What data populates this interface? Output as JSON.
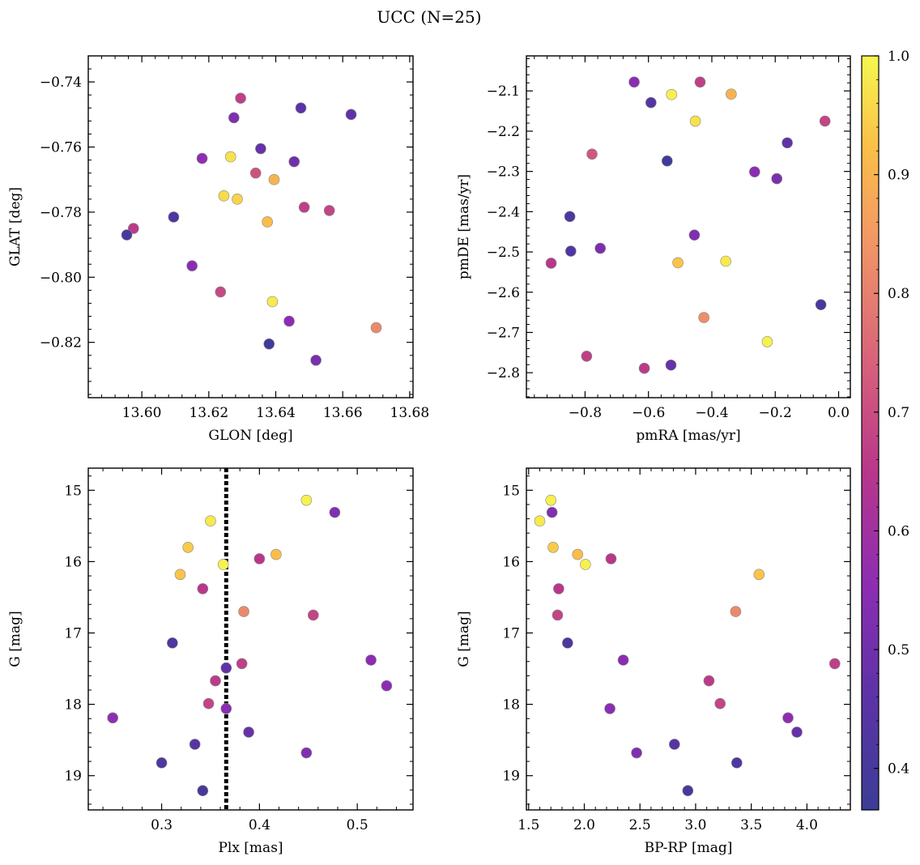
{
  "figure": {
    "title": "UCC (N=25)"
  },
  "colorbar": {
    "ticks": [
      0.4,
      0.5,
      0.6,
      0.7,
      0.8,
      0.9,
      1.0
    ],
    "tick_labels": [
      "0.4",
      "0.5",
      "0.6",
      "0.7",
      "0.8",
      "0.9",
      "1.0"
    ],
    "range": [
      0.365,
      1.0
    ]
  },
  "chart_data": [
    {
      "type": "scatter",
      "xlabel": "GLON [deg]",
      "ylabel": "GLAT [deg]",
      "xlim": [
        13.584,
        13.681
      ],
      "ylim": [
        -0.837,
        -0.732
      ],
      "y_inverted": false,
      "xticks": [
        13.6,
        13.62,
        13.64,
        13.66,
        13.68
      ],
      "xtick_labels": [
        "13.60",
        "13.62",
        "13.64",
        "13.66",
        "13.68"
      ],
      "yticks": [
        -0.82,
        -0.8,
        -0.78,
        -0.76,
        -0.74
      ],
      "ytick_labels": [
        "−0.82",
        "−0.80",
        "−0.78",
        "−0.76",
        "−0.74"
      ],
      "points": [
        {
          "x": 13.6295,
          "y": -0.745,
          "c": 0.67
        },
        {
          "x": 13.6275,
          "y": -0.751,
          "c": 0.53
        },
        {
          "x": 13.6475,
          "y": -0.748,
          "c": 0.46
        },
        {
          "x": 13.6625,
          "y": -0.75,
          "c": 0.47
        },
        {
          "x": 13.6355,
          "y": -0.7605,
          "c": 0.48
        },
        {
          "x": 13.618,
          "y": -0.7635,
          "c": 0.56
        },
        {
          "x": 13.6265,
          "y": -0.763,
          "c": 0.97
        },
        {
          "x": 13.6455,
          "y": -0.7645,
          "c": 0.5
        },
        {
          "x": 13.634,
          "y": -0.768,
          "c": 0.71
        },
        {
          "x": 13.6395,
          "y": -0.77,
          "c": 0.9
        },
        {
          "x": 13.6245,
          "y": -0.775,
          "c": 0.96
        },
        {
          "x": 13.6285,
          "y": -0.776,
          "c": 0.95
        },
        {
          "x": 13.6485,
          "y": -0.7785,
          "c": 0.67
        },
        {
          "x": 13.656,
          "y": -0.7795,
          "c": 0.68
        },
        {
          "x": 13.6095,
          "y": -0.7815,
          "c": 0.42
        },
        {
          "x": 13.6375,
          "y": -0.783,
          "c": 0.92
        },
        {
          "x": 13.5975,
          "y": -0.785,
          "c": 0.66
        },
        {
          "x": 13.5955,
          "y": -0.787,
          "c": 0.4
        },
        {
          "x": 13.615,
          "y": -0.7965,
          "c": 0.55
        },
        {
          "x": 13.6235,
          "y": -0.8045,
          "c": 0.69
        },
        {
          "x": 13.639,
          "y": -0.8075,
          "c": 0.98
        },
        {
          "x": 13.644,
          "y": -0.8135,
          "c": 0.55
        },
        {
          "x": 13.67,
          "y": -0.8155,
          "c": 0.82
        },
        {
          "x": 13.638,
          "y": -0.8205,
          "c": 0.38
        },
        {
          "x": 13.652,
          "y": -0.8255,
          "c": 0.52
        }
      ]
    },
    {
      "type": "scatter",
      "xlabel": "pmRA [mas/yr]",
      "ylabel": "pmDE [mas/yr]",
      "xlim": [
        -0.985,
        0.037
      ],
      "ylim": [
        -2.862,
        -2.013
      ],
      "y_inverted": false,
      "xticks": [
        -0.8,
        -0.6,
        -0.4,
        -0.2,
        0.0
      ],
      "xtick_labels": [
        "−0.8",
        "−0.6",
        "−0.4",
        "−0.2",
        "0.0"
      ],
      "yticks": [
        -2.8,
        -2.7,
        -2.6,
        -2.5,
        -2.4,
        -2.3,
        -2.2,
        -2.1
      ],
      "ytick_labels": [
        "−2.8",
        "−2.7",
        "−2.6",
        "−2.5",
        "−2.4",
        "−2.3",
        "−2.2",
        "−2.1"
      ],
      "points": [
        {
          "x": -0.645,
          "y": -2.078,
          "c": 0.55
        },
        {
          "x": -0.437,
          "y": -2.078,
          "c": 0.67
        },
        {
          "x": -0.527,
          "y": -2.109,
          "c": 0.99
        },
        {
          "x": -0.339,
          "y": -2.108,
          "c": 0.9
        },
        {
          "x": -0.592,
          "y": -2.129,
          "c": 0.44
        },
        {
          "x": -0.452,
          "y": -2.175,
          "c": 0.97
        },
        {
          "x": -0.043,
          "y": -2.175,
          "c": 0.68
        },
        {
          "x": -0.162,
          "y": -2.229,
          "c": 0.47
        },
        {
          "x": -0.778,
          "y": -2.257,
          "c": 0.72
        },
        {
          "x": -0.541,
          "y": -2.274,
          "c": 0.38
        },
        {
          "x": -0.265,
          "y": -2.301,
          "c": 0.55
        },
        {
          "x": -0.195,
          "y": -2.318,
          "c": 0.52
        },
        {
          "x": -0.848,
          "y": -2.412,
          "c": 0.42
        },
        {
          "x": -0.455,
          "y": -2.458,
          "c": 0.53
        },
        {
          "x": -0.752,
          "y": -2.491,
          "c": 0.52
        },
        {
          "x": -0.845,
          "y": -2.498,
          "c": 0.42
        },
        {
          "x": -0.907,
          "y": -2.528,
          "c": 0.65
        },
        {
          "x": -0.507,
          "y": -2.527,
          "c": 0.93
        },
        {
          "x": -0.356,
          "y": -2.523,
          "c": 0.98
        },
        {
          "x": -0.425,
          "y": -2.663,
          "c": 0.83
        },
        {
          "x": -0.056,
          "y": -2.631,
          "c": 0.4
        },
        {
          "x": -0.225,
          "y": -2.723,
          "c": 0.99
        },
        {
          "x": -0.795,
          "y": -2.759,
          "c": 0.67
        },
        {
          "x": -0.529,
          "y": -2.781,
          "c": 0.48
        },
        {
          "x": -0.613,
          "y": -2.789,
          "c": 0.66
        }
      ]
    },
    {
      "type": "scatter",
      "xlabel": "Plx [mas]",
      "ylabel": "G [mag]",
      "xlim": [
        0.225,
        0.557
      ],
      "ylim": [
        19.48,
        14.69
      ],
      "y_inverted": true,
      "vline": 0.366,
      "xticks": [
        0.3,
        0.4,
        0.5
      ],
      "xtick_labels": [
        "0.3",
        "0.4",
        "0.5"
      ],
      "yticks": [
        15,
        16,
        17,
        18,
        19
      ],
      "ytick_labels": [
        "15",
        "16",
        "17",
        "18",
        "19"
      ],
      "points": [
        {
          "x": 0.448,
          "y": 15.14,
          "c": 0.99
        },
        {
          "x": 0.477,
          "y": 15.31,
          "c": 0.53
        },
        {
          "x": 0.35,
          "y": 15.43,
          "c": 0.98
        },
        {
          "x": 0.327,
          "y": 15.8,
          "c": 0.94
        },
        {
          "x": 0.417,
          "y": 15.9,
          "c": 0.92
        },
        {
          "x": 0.4,
          "y": 15.96,
          "c": 0.65
        },
        {
          "x": 0.363,
          "y": 16.04,
          "c": 0.99
        },
        {
          "x": 0.319,
          "y": 16.18,
          "c": 0.93
        },
        {
          "x": 0.342,
          "y": 16.38,
          "c": 0.65
        },
        {
          "x": 0.384,
          "y": 16.7,
          "c": 0.82
        },
        {
          "x": 0.455,
          "y": 16.75,
          "c": 0.68
        },
        {
          "x": 0.311,
          "y": 17.14,
          "c": 0.42
        },
        {
          "x": 0.514,
          "y": 17.38,
          "c": 0.55
        },
        {
          "x": 0.382,
          "y": 17.43,
          "c": 0.67
        },
        {
          "x": 0.366,
          "y": 17.49,
          "c": 0.47
        },
        {
          "x": 0.355,
          "y": 17.67,
          "c": 0.66
        },
        {
          "x": 0.53,
          "y": 17.74,
          "c": 0.55
        },
        {
          "x": 0.348,
          "y": 17.99,
          "c": 0.68
        },
        {
          "x": 0.366,
          "y": 18.06,
          "c": 0.55
        },
        {
          "x": 0.25,
          "y": 18.19,
          "c": 0.56
        },
        {
          "x": 0.389,
          "y": 18.39,
          "c": 0.48
        },
        {
          "x": 0.334,
          "y": 18.56,
          "c": 0.44
        },
        {
          "x": 0.448,
          "y": 18.68,
          "c": 0.53
        },
        {
          "x": 0.3,
          "y": 18.82,
          "c": 0.42
        },
        {
          "x": 0.342,
          "y": 19.21,
          "c": 0.4
        }
      ]
    },
    {
      "type": "scatter",
      "xlabel": "BP-RP [mag]",
      "ylabel": "G [mag]",
      "xlim": [
        1.48,
        4.39
      ],
      "ylim": [
        19.48,
        14.69
      ],
      "y_inverted": true,
      "xticks": [
        1.5,
        2.0,
        2.5,
        3.0,
        3.5,
        4.0
      ],
      "xtick_labels": [
        "1.5",
        "2.0",
        "2.5",
        "3.0",
        "3.5",
        "4.0"
      ],
      "yticks": [
        15,
        16,
        17,
        18,
        19
      ],
      "ytick_labels": [
        "15",
        "16",
        "17",
        "18",
        "19"
      ],
      "points": [
        {
          "x": 1.7,
          "y": 15.14,
          "c": 0.99
        },
        {
          "x": 1.71,
          "y": 15.31,
          "c": 0.53
        },
        {
          "x": 1.6,
          "y": 15.43,
          "c": 0.98
        },
        {
          "x": 1.72,
          "y": 15.8,
          "c": 0.94
        },
        {
          "x": 1.94,
          "y": 15.9,
          "c": 0.92
        },
        {
          "x": 2.24,
          "y": 15.96,
          "c": 0.65
        },
        {
          "x": 2.01,
          "y": 16.04,
          "c": 0.99
        },
        {
          "x": 3.57,
          "y": 16.18,
          "c": 0.93
        },
        {
          "x": 1.77,
          "y": 16.38,
          "c": 0.65
        },
        {
          "x": 3.36,
          "y": 16.7,
          "c": 0.82
        },
        {
          "x": 1.76,
          "y": 16.75,
          "c": 0.68
        },
        {
          "x": 1.85,
          "y": 17.14,
          "c": 0.42
        },
        {
          "x": 2.35,
          "y": 17.38,
          "c": 0.55
        },
        {
          "x": 4.25,
          "y": 17.43,
          "c": 0.67
        },
        {
          "x": 3.12,
          "y": 17.67,
          "c": 0.66
        },
        {
          "x": 3.22,
          "y": 17.99,
          "c": 0.68
        },
        {
          "x": 2.23,
          "y": 18.06,
          "c": 0.55
        },
        {
          "x": 3.83,
          "y": 18.19,
          "c": 0.56
        },
        {
          "x": 3.91,
          "y": 18.39,
          "c": 0.48
        },
        {
          "x": 2.81,
          "y": 18.56,
          "c": 0.44
        },
        {
          "x": 2.47,
          "y": 18.68,
          "c": 0.53
        },
        {
          "x": 3.37,
          "y": 18.82,
          "c": 0.42
        },
        {
          "x": 2.93,
          "y": 19.21,
          "c": 0.4
        }
      ]
    }
  ]
}
